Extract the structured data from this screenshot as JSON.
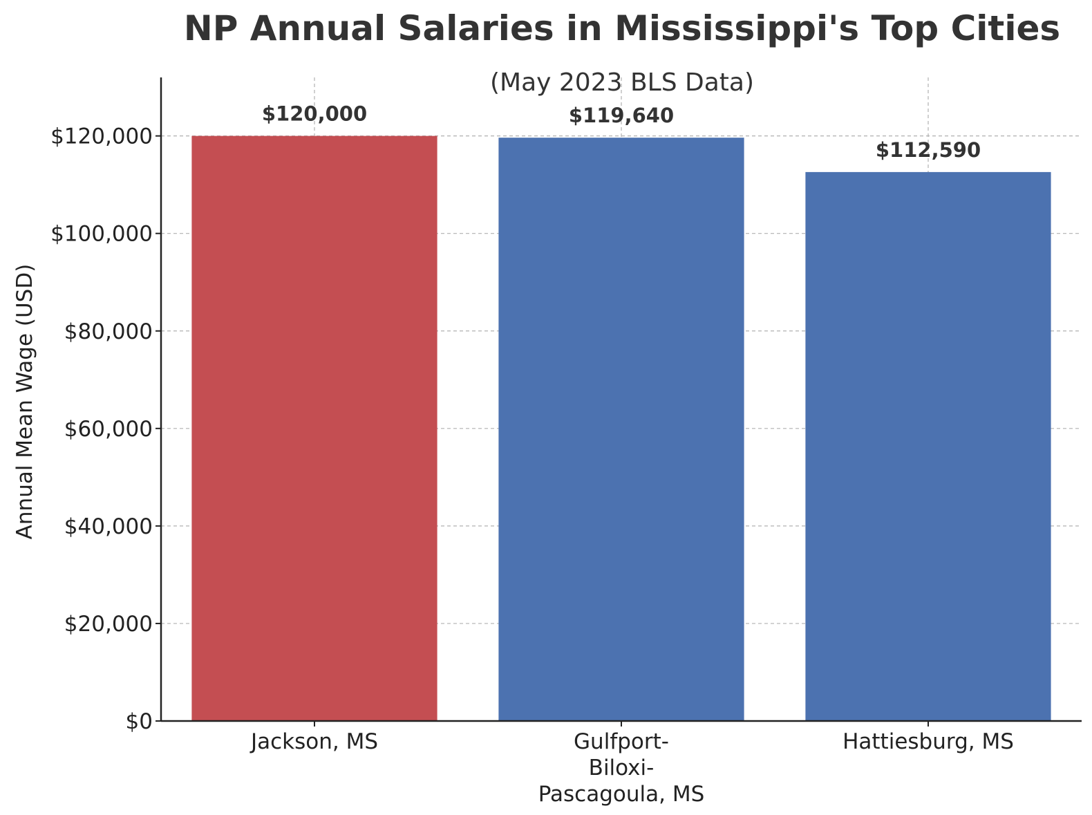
{
  "chart_data": {
    "type": "bar",
    "title": "NP Annual Salaries in Mississippi's Top Cities",
    "subtitle": "(May 2023 BLS Data)",
    "ylabel": "Annual Mean Wage (USD)",
    "xlabel": "",
    "categories": [
      [
        "Jackson, MS"
      ],
      [
        "Gulfport-",
        "Biloxi-",
        "Pascagoula, MS"
      ],
      [
        "Hattiesburg, MS"
      ]
    ],
    "values": [
      120000,
      119640,
      112590
    ],
    "data_labels": [
      "$120,000",
      "$119,640",
      "$112,590"
    ],
    "bar_colors": [
      "#c44e52",
      "#4c72b0",
      "#4c72b0"
    ],
    "yticks": [
      0,
      20000,
      40000,
      60000,
      80000,
      100000,
      120000
    ],
    "ytick_labels": [
      "$0",
      "$20,000",
      "$40,000",
      "$60,000",
      "$80,000",
      "$100,000",
      "$120,000"
    ],
    "ylim": [
      0,
      132000
    ],
    "grid": true
  }
}
